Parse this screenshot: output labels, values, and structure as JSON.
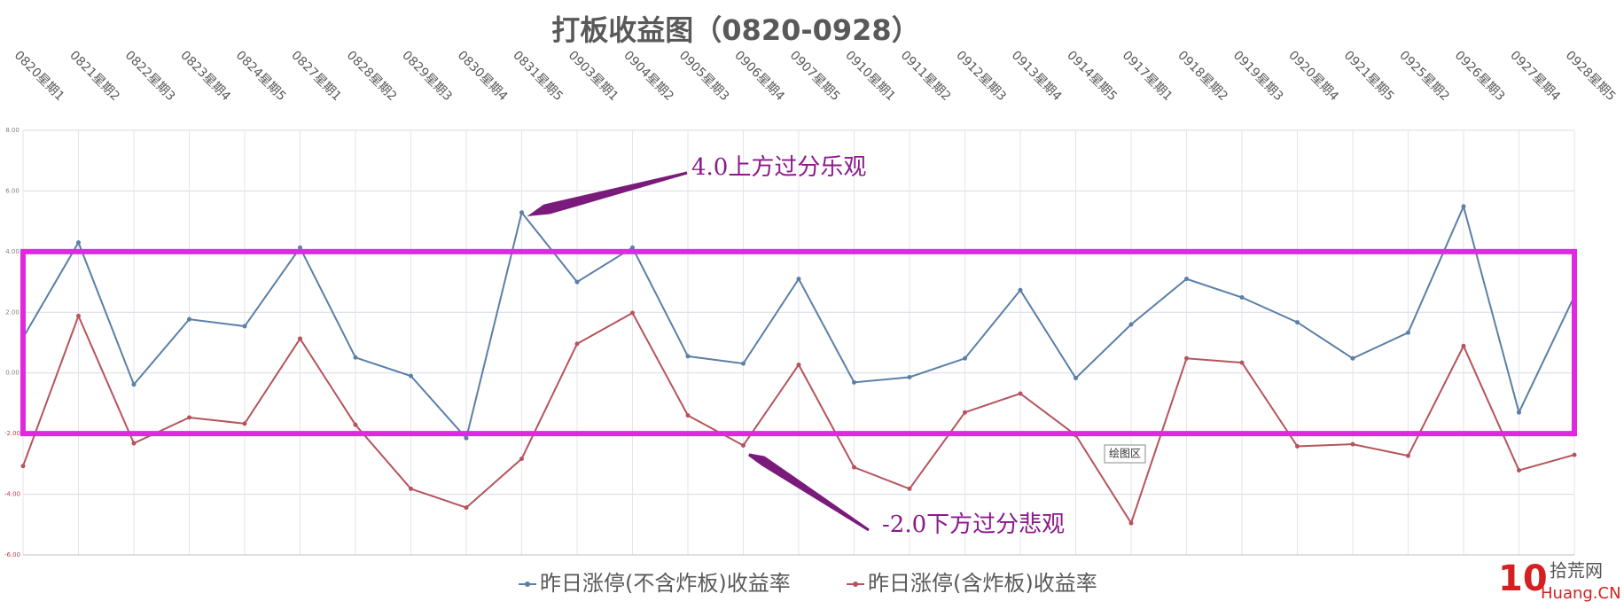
{
  "chart_data": {
    "type": "line",
    "title": "打板收益图（0820-0928）",
    "categories": [
      "0820星期1",
      "0821星期2",
      "0822星期3",
      "0823星期4",
      "0824星期5",
      "0827星期1",
      "0828星期2",
      "0829星期3",
      "0830星期4",
      "0831星期5",
      "0903星期1",
      "0904星期2",
      "0905星期3",
      "0906星期4",
      "0907星期5",
      "0910星期1",
      "0911星期2",
      "0912星期3",
      "0913星期4",
      "0914星期5",
      "0917星期1",
      "0918星期2",
      "0919星期3",
      "0920星期4",
      "0921星期5",
      "0925星期2",
      "0926星期3",
      "0927星期4",
      "0928星期5"
    ],
    "series": [
      {
        "name": "昨日涨停(不含炸板)收益率",
        "color": "#5b7fa8",
        "values": [
          1.16,
          4.3,
          -0.38,
          1.77,
          1.54,
          4.13,
          0.51,
          -0.1,
          -2.15,
          5.29,
          3.0,
          4.13,
          0.55,
          0.31,
          3.1,
          -0.31,
          -0.14,
          0.48,
          2.73,
          -0.17,
          1.6,
          3.1,
          2.49,
          1.67,
          0.48,
          1.33,
          5.49,
          -1.3,
          2.53
        ]
      },
      {
        "name": "昨日涨停(含炸板)收益率",
        "color": "#b5545c",
        "values": [
          -3.07,
          1.88,
          -2.32,
          -1.47,
          -1.67,
          1.13,
          -1.71,
          -3.82,
          -4.44,
          -2.83,
          0.96,
          1.98,
          -1.4,
          -2.39,
          0.27,
          -3.11,
          -3.82,
          -1.3,
          -0.68,
          -2.05,
          -4.95,
          0.48,
          0.34,
          -2.42,
          -2.35,
          -2.73,
          0.89,
          -3.21,
          -2.7
        ]
      }
    ],
    "ylim": [
      -6,
      8
    ],
    "yticks": [
      {
        "value": -6,
        "label": "-6.00"
      },
      {
        "value": -4,
        "label": "-4.00"
      },
      {
        "value": -2,
        "label": "-2.00"
      },
      {
        "value": 0,
        "label": "0.00"
      },
      {
        "value": 2,
        "label": "2.00"
      },
      {
        "value": 4,
        "label": "4.00"
      },
      {
        "value": 6,
        "label": "6.00"
      },
      {
        "value": 8,
        "label": "8.00"
      }
    ],
    "grid": true,
    "highlight_box": {
      "ylim": [
        -2,
        4
      ],
      "color": "#e028e0"
    },
    "annotations": [
      "4.0上方过分乐观",
      "-2.0下方过分悲观"
    ],
    "tooltip": "绘图区"
  },
  "watermark": {
    "name": "拾荒网",
    "logo": "10",
    "site": "Huang.CN"
  }
}
